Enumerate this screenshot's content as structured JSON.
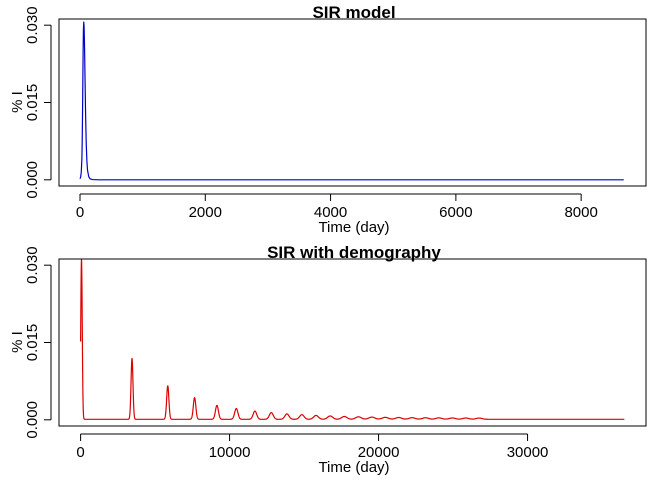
{
  "chart_data": [
    {
      "type": "line",
      "title": "SIR model",
      "xlabel": "Time (day)",
      "ylabel": "% I",
      "xlim": [
        -335,
        9035
      ],
      "ylim": [
        -0.0012,
        0.0312
      ],
      "xticks": [
        0,
        2000,
        4000,
        6000,
        8000
      ],
      "xtick_labels": [
        "0",
        "2000",
        "4000",
        "6000",
        "8000"
      ],
      "yticks": [
        0,
        0.015,
        0.03
      ],
      "ytick_labels": [
        "0.000",
        "0.015",
        "0.030"
      ],
      "grid": false,
      "color": "#0000cc",
      "series": [
        {
          "x": [
            0,
            10,
            20,
            30,
            35,
            40,
            45,
            50,
            55,
            60,
            65,
            70,
            75,
            80,
            90,
            100,
            110,
            120,
            140,
            160,
            200,
            300,
            600,
            1000,
            2000,
            4000,
            6000,
            8000,
            8680
          ],
          "y": [
            0.0002,
            0.0005,
            0.0014,
            0.004,
            0.0072,
            0.012,
            0.0185,
            0.025,
            0.0292,
            0.0306,
            0.0298,
            0.0275,
            0.024,
            0.02,
            0.0125,
            0.007,
            0.0037,
            0.0019,
            0.0006,
            0.0002,
            5e-05,
            0,
            0,
            0,
            0,
            0,
            0,
            0,
            0
          ]
        }
      ]
    },
    {
      "type": "line",
      "title": "SIR with demography",
      "xlabel": "Time (day)",
      "ylabel": "% I",
      "xlim": [
        -1450,
        37950
      ],
      "ylim": [
        -0.0012,
        0.0312
      ],
      "xticks": [
        0,
        10000,
        20000,
        30000
      ],
      "xtick_labels": [
        "0",
        "10000",
        "20000",
        "30000"
      ],
      "yticks": [
        0,
        0.015,
        0.03
      ],
      "ytick_labels": [
        "0.000",
        "0.015",
        "0.030"
      ],
      "grid": false,
      "color": "#dd0000",
      "baseline": 0.0001,
      "peaks": [
        {
          "t": 60,
          "h": 0.031,
          "w": 50
        },
        {
          "t": 3450,
          "h": 0.0118,
          "w": 65
        },
        {
          "t": 5850,
          "h": 0.0065,
          "w": 75
        },
        {
          "t": 7650,
          "h": 0.0042,
          "w": 85
        },
        {
          "t": 9150,
          "h": 0.0027,
          "w": 100
        },
        {
          "t": 10450,
          "h": 0.0021,
          "w": 110
        },
        {
          "t": 11700,
          "h": 0.0016,
          "w": 120
        },
        {
          "t": 12800,
          "h": 0.0013,
          "w": 130
        },
        {
          "t": 13850,
          "h": 0.00105,
          "w": 140
        },
        {
          "t": 14850,
          "h": 0.0009,
          "w": 150
        },
        {
          "t": 15800,
          "h": 0.00075,
          "w": 160
        },
        {
          "t": 16750,
          "h": 0.00065,
          "w": 170
        },
        {
          "t": 17700,
          "h": 0.00055,
          "w": 180
        },
        {
          "t": 18650,
          "h": 0.00048,
          "w": 190
        },
        {
          "t": 19550,
          "h": 0.00043,
          "w": 200
        },
        {
          "t": 20450,
          "h": 0.00038,
          "w": 200
        },
        {
          "t": 21350,
          "h": 0.00035,
          "w": 200
        },
        {
          "t": 22250,
          "h": 0.00032,
          "w": 200
        },
        {
          "t": 23150,
          "h": 0.0003,
          "w": 200
        },
        {
          "t": 24050,
          "h": 0.00028,
          "w": 200
        },
        {
          "t": 24950,
          "h": 0.00026,
          "w": 200
        },
        {
          "t": 25850,
          "h": 0.00025,
          "w": 200
        },
        {
          "t": 26750,
          "h": 0.00024,
          "w": 200
        }
      ],
      "x_end": 36500
    }
  ]
}
